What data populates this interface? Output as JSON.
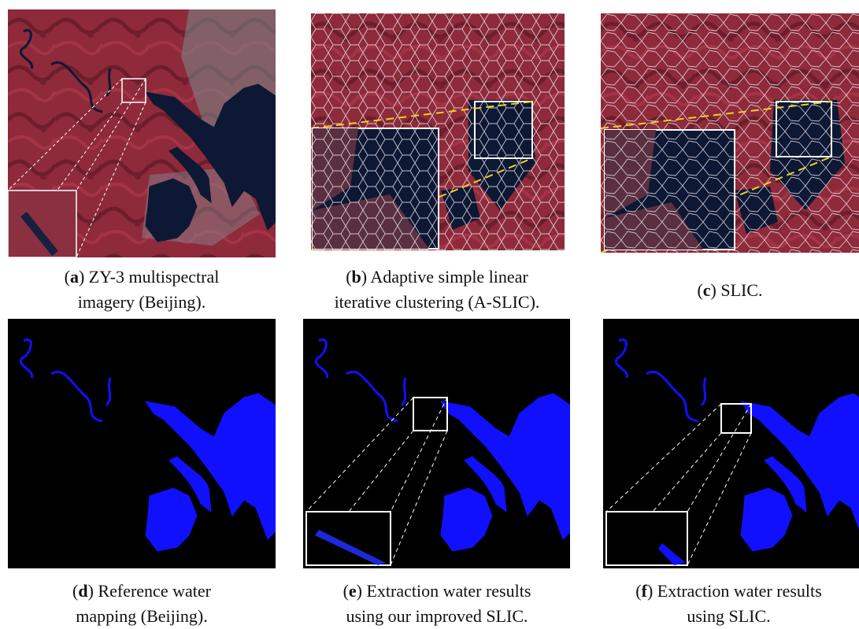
{
  "panels": [
    {
      "caption": [
        "(",
        "a",
        ") ZY-3 multispectral",
        "imagery (Beijing)."
      ]
    },
    {
      "caption": [
        "(",
        "b",
        ") Adaptive simple linear",
        "iterative clustering (A-SLIC)."
      ]
    },
    {
      "caption": [
        "(",
        "c",
        ") SLIC."
      ]
    },
    {
      "caption": [
        "(",
        "d",
        ") Reference water",
        "mapping (Beijing)."
      ]
    },
    {
      "caption": [
        "(",
        "e",
        ") Extraction water results",
        "using our improved SLIC."
      ]
    },
    {
      "caption": [
        "(",
        "f",
        ") Extraction water results",
        "using SLIC."
      ]
    }
  ]
}
